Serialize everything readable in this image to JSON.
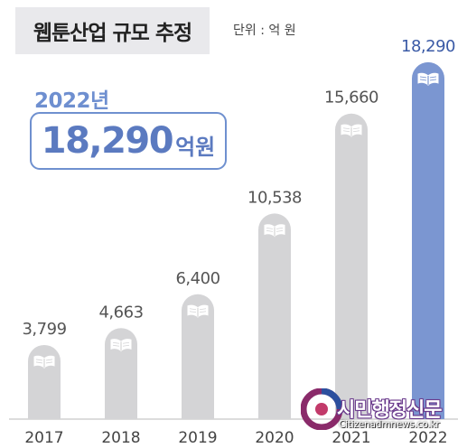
{
  "header": {
    "title": "웹툰산업 규모 추정",
    "unit": "단위 : 억 원"
  },
  "highlight": {
    "year": "2022년",
    "value": "18,290",
    "unit": "억원"
  },
  "watermark": {
    "name": "시민행정신문",
    "url": "Citizenadmnews.co.kr"
  },
  "colors": {
    "bar_default": "#d4d4d6",
    "bar_highlight": "#7b96d1",
    "label_default": "#555555",
    "label_highlight": "#3a5aa6"
  },
  "chart_data": {
    "type": "bar",
    "title": "웹툰산업 규모 추정",
    "categories": [
      "2017",
      "2018",
      "2019",
      "2020",
      "2021",
      "2022"
    ],
    "values": [
      3799,
      4663,
      6400,
      10538,
      15660,
      18290
    ],
    "value_labels": [
      "3,799",
      "4,663",
      "6,400",
      "10,538",
      "15,660",
      "18,290"
    ],
    "highlight_index": 5,
    "grid": false
  }
}
